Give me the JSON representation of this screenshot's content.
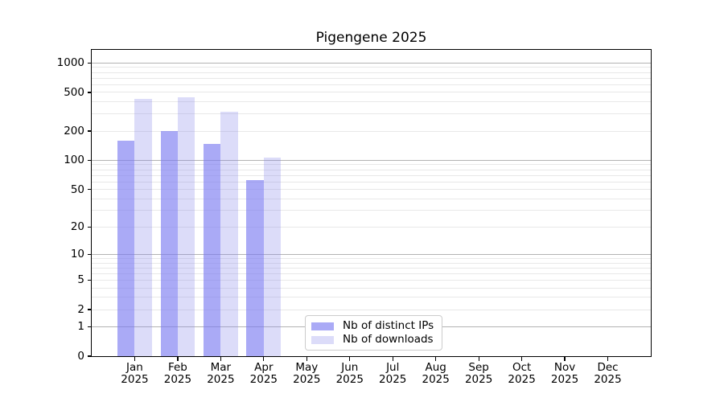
{
  "chart_data": {
    "type": "bar",
    "title": "Pigengene 2025",
    "year_label": "2025",
    "categories": [
      "Jan",
      "Feb",
      "Mar",
      "Apr",
      "May",
      "Jun",
      "Jul",
      "Aug",
      "Sep",
      "Oct",
      "Nov",
      "Dec"
    ],
    "series": [
      {
        "name": "Nb of distinct IPs",
        "color": "rgba(120,120,240,0.63)",
        "values": [
          161,
          202,
          149,
          62,
          null,
          null,
          null,
          null,
          null,
          null,
          null,
          null
        ]
      },
      {
        "name": "Nb of downloads",
        "color": "rgba(135,135,235,0.29)",
        "values": [
          426,
          446,
          318,
          106,
          null,
          null,
          null,
          null,
          null,
          null,
          null,
          null
        ]
      }
    ],
    "xlabel": "",
    "ylabel": "",
    "y_ticks": [
      0,
      1,
      2,
      5,
      10,
      20,
      50,
      100,
      200,
      500,
      1000
    ],
    "y_grid_major": [
      1,
      10,
      100,
      1000
    ],
    "y_grid_minor": [
      2,
      3,
      4,
      5,
      6,
      7,
      8,
      9,
      20,
      30,
      40,
      50,
      60,
      70,
      80,
      90,
      200,
      300,
      400,
      500,
      600,
      700,
      800,
      900
    ],
    "y_scale": "log10(value+1)",
    "y_max": 1365,
    "grid": true,
    "legend_position": "lower-center-inside",
    "bar_group_width_fraction": 0.8
  },
  "colors": {
    "background": "#ffffff",
    "spine": "#000000",
    "grid_major": "#b3b3b3",
    "grid_minor": "#e8e8e8",
    "text": "#000000",
    "legend_border": "#cccccc"
  }
}
